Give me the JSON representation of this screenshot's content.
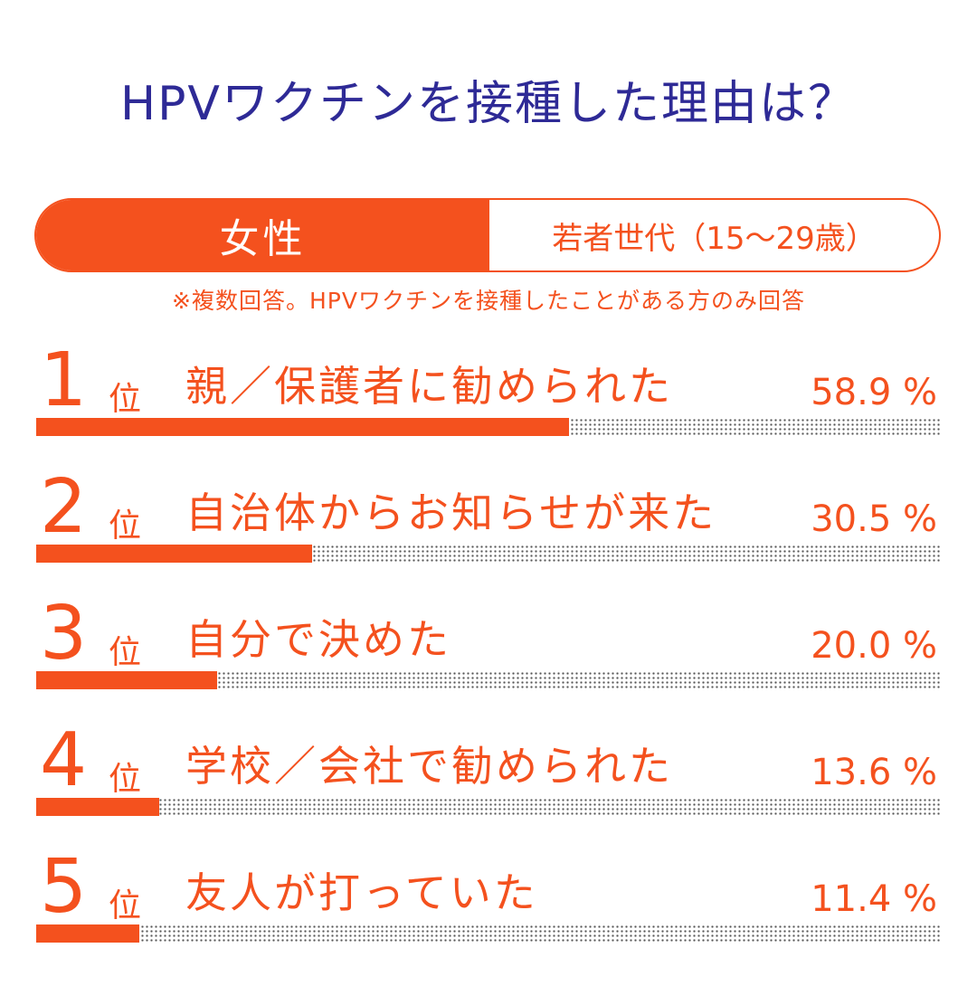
{
  "title": "HPVワクチンを接種した理由は？",
  "segment": {
    "gender": "女性",
    "age_group": "若者世代（15～29歳）"
  },
  "note": "※複数回答。HPVワクチンを接種したことがある方のみ回答",
  "rank_suffix": "位",
  "colors": {
    "accent": "#f4511e",
    "title": "#2e2a96",
    "dots": "#555555"
  },
  "chart_data": {
    "type": "bar",
    "orientation": "horizontal",
    "title": "HPVワクチンを接種した理由は？",
    "categories": [
      "親／保護者に勧められた",
      "自治体からお知らせが来た",
      "自分で決めた",
      "学校／会社で勧められた",
      "友人が打っていた"
    ],
    "values": [
      58.9,
      30.5,
      20.0,
      13.6,
      11.4
    ],
    "value_labels": [
      "58.9 %",
      "30.5 %",
      "20.0 %",
      "13.6 %",
      "11.4 %"
    ],
    "ranks": [
      "1",
      "2",
      "3",
      "4",
      "5"
    ],
    "xlim": [
      0,
      100
    ],
    "unit": "%"
  }
}
